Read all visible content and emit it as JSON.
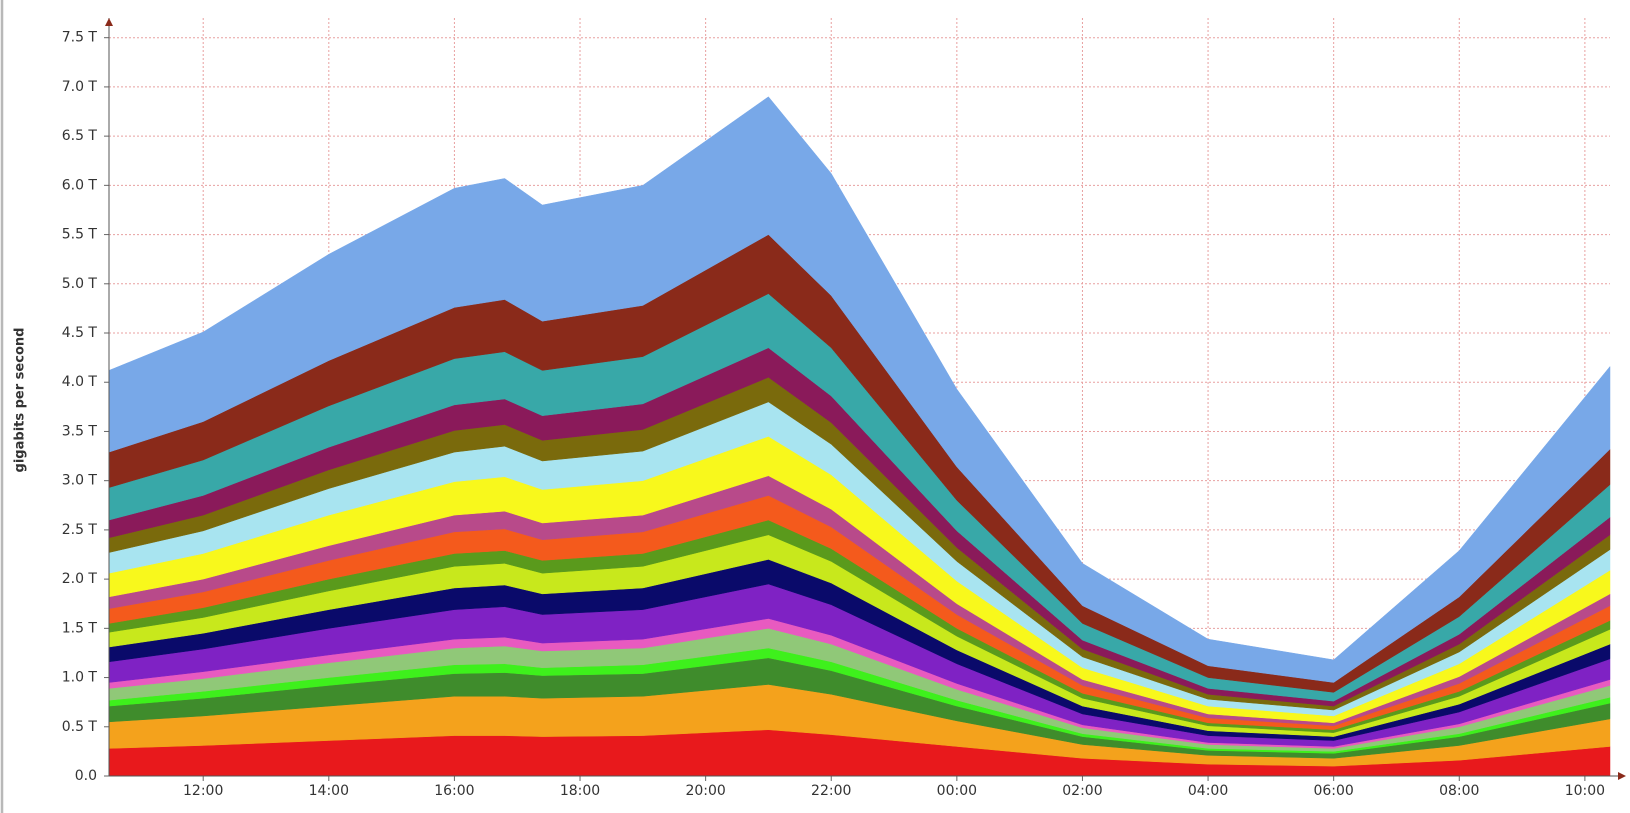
{
  "chart_data": {
    "type": "stacked-area",
    "y_label": "gigabits per second",
    "x": [
      10.5,
      12,
      14,
      16,
      16.8,
      17.4,
      19,
      21,
      22,
      24,
      26,
      28,
      30,
      32,
      34.4
    ],
    "xlim": [
      10.5,
      34.4
    ],
    "xticks": [
      {
        "value": 12,
        "label": "12:00"
      },
      {
        "value": 14,
        "label": "14:00"
      },
      {
        "value": 16,
        "label": "16:00"
      },
      {
        "value": 18,
        "label": "18:00"
      },
      {
        "value": 20,
        "label": "20:00"
      },
      {
        "value": 22,
        "label": "22:00"
      },
      {
        "value": 24,
        "label": "00:00"
      },
      {
        "value": 26,
        "label": "02:00"
      },
      {
        "value": 28,
        "label": "04:00"
      },
      {
        "value": 30,
        "label": "06:00"
      },
      {
        "value": 32,
        "label": "08:00"
      },
      {
        "value": 34,
        "label": "10:00"
      }
    ],
    "ylim": [
      0,
      7.7
    ],
    "yticks": [
      {
        "value": 0,
        "label": "0.0"
      },
      {
        "value": 0.5,
        "label": "0.5 T"
      },
      {
        "value": 1,
        "label": "1.0 T"
      },
      {
        "value": 1.5,
        "label": "1.5 T"
      },
      {
        "value": 2,
        "label": "2.0 T"
      },
      {
        "value": 2.5,
        "label": "2.5 T"
      },
      {
        "value": 3,
        "label": "3.0 T"
      },
      {
        "value": 3.5,
        "label": "3.5 T"
      },
      {
        "value": 4,
        "label": "4.0 T"
      },
      {
        "value": 4.5,
        "label": "4.5 T"
      },
      {
        "value": 5,
        "label": "5.0 T"
      },
      {
        "value": 5.5,
        "label": "5.5 T"
      },
      {
        "value": 6,
        "label": "6.0 T"
      },
      {
        "value": 6.5,
        "label": "6.5 T"
      },
      {
        "value": 7,
        "label": "7.0 T"
      },
      {
        "value": 7.5,
        "label": "7.5 T"
      }
    ],
    "grid": true,
    "series": [
      {
        "color": "#e8191c",
        "values": [
          0.28,
          0.31,
          0.36,
          0.41,
          0.41,
          0.4,
          0.41,
          0.47,
          0.42,
          0.3,
          0.18,
          0.12,
          0.1,
          0.16,
          0.3
        ]
      },
      {
        "color": "#f4a21c",
        "values": [
          0.27,
          0.3,
          0.35,
          0.4,
          0.4,
          0.39,
          0.4,
          0.46,
          0.41,
          0.26,
          0.14,
          0.09,
          0.08,
          0.15,
          0.28
        ]
      },
      {
        "color": "#3f8c2c",
        "values": [
          0.16,
          0.18,
          0.21,
          0.23,
          0.24,
          0.23,
          0.23,
          0.27,
          0.24,
          0.15,
          0.08,
          0.05,
          0.05,
          0.09,
          0.16
        ]
      },
      {
        "color": "#3ef01c",
        "values": [
          0.06,
          0.07,
          0.08,
          0.09,
          0.09,
          0.08,
          0.09,
          0.1,
          0.09,
          0.06,
          0.03,
          0.02,
          0.02,
          0.03,
          0.06
        ]
      },
      {
        "color": "#90c878",
        "values": [
          0.12,
          0.13,
          0.15,
          0.17,
          0.18,
          0.17,
          0.17,
          0.2,
          0.18,
          0.11,
          0.06,
          0.04,
          0.03,
          0.07,
          0.12
        ]
      },
      {
        "color": "#e85ac0",
        "values": [
          0.06,
          0.07,
          0.08,
          0.09,
          0.09,
          0.08,
          0.09,
          0.1,
          0.09,
          0.06,
          0.03,
          0.02,
          0.02,
          0.03,
          0.06
        ]
      },
      {
        "color": "#7f22c4",
        "values": [
          0.21,
          0.23,
          0.27,
          0.3,
          0.31,
          0.29,
          0.3,
          0.35,
          0.31,
          0.2,
          0.11,
          0.07,
          0.06,
          0.12,
          0.21
        ]
      },
      {
        "color": "#0a0a6a",
        "values": [
          0.15,
          0.16,
          0.19,
          0.22,
          0.22,
          0.21,
          0.22,
          0.25,
          0.22,
          0.14,
          0.08,
          0.05,
          0.04,
          0.08,
          0.15
        ]
      },
      {
        "color": "#c8e81c",
        "values": [
          0.15,
          0.16,
          0.19,
          0.22,
          0.22,
          0.21,
          0.22,
          0.25,
          0.22,
          0.14,
          0.08,
          0.05,
          0.04,
          0.08,
          0.15
        ]
      },
      {
        "color": "#5a9a1c",
        "values": [
          0.09,
          0.1,
          0.12,
          0.13,
          0.13,
          0.13,
          0.13,
          0.15,
          0.13,
          0.08,
          0.05,
          0.03,
          0.03,
          0.05,
          0.09
        ]
      },
      {
        "color": "#f45a1c",
        "values": [
          0.15,
          0.16,
          0.19,
          0.22,
          0.22,
          0.21,
          0.22,
          0.25,
          0.22,
          0.14,
          0.08,
          0.05,
          0.04,
          0.08,
          0.15
        ]
      },
      {
        "color": "#b84a8a",
        "values": [
          0.12,
          0.13,
          0.15,
          0.17,
          0.18,
          0.17,
          0.17,
          0.2,
          0.18,
          0.11,
          0.06,
          0.04,
          0.03,
          0.07,
          0.12
        ]
      },
      {
        "color": "#f8f81c",
        "values": [
          0.24,
          0.26,
          0.31,
          0.34,
          0.35,
          0.34,
          0.35,
          0.4,
          0.35,
          0.23,
          0.12,
          0.08,
          0.07,
          0.13,
          0.24
        ]
      },
      {
        "color": "#a8e4f0",
        "values": [
          0.21,
          0.23,
          0.27,
          0.3,
          0.31,
          0.29,
          0.3,
          0.35,
          0.31,
          0.2,
          0.11,
          0.07,
          0.06,
          0.12,
          0.21
        ]
      },
      {
        "color": "#7a6a0c",
        "values": [
          0.15,
          0.16,
          0.19,
          0.22,
          0.22,
          0.21,
          0.22,
          0.25,
          0.22,
          0.14,
          0.08,
          0.05,
          0.04,
          0.08,
          0.15
        ]
      },
      {
        "color": "#8a1a5a",
        "values": [
          0.18,
          0.2,
          0.23,
          0.26,
          0.26,
          0.25,
          0.26,
          0.3,
          0.27,
          0.17,
          0.09,
          0.06,
          0.05,
          0.1,
          0.18
        ]
      },
      {
        "color": "#38a8a8",
        "values": [
          0.33,
          0.36,
          0.42,
          0.47,
          0.48,
          0.46,
          0.48,
          0.55,
          0.49,
          0.31,
          0.17,
          0.11,
          0.09,
          0.18,
          0.33
        ]
      },
      {
        "color": "#8a2a1a",
        "values": [
          0.36,
          0.39,
          0.46,
          0.52,
          0.53,
          0.5,
          0.52,
          0.6,
          0.53,
          0.34,
          0.18,
          0.12,
          0.1,
          0.2,
          0.36
        ]
      },
      {
        "color": "#78a8e8",
        "values": [
          0.83,
          0.91,
          1.08,
          1.21,
          1.23,
          1.18,
          1.22,
          1.4,
          1.24,
          0.79,
          0.43,
          0.27,
          0.23,
          0.47,
          0.84
        ]
      }
    ]
  }
}
